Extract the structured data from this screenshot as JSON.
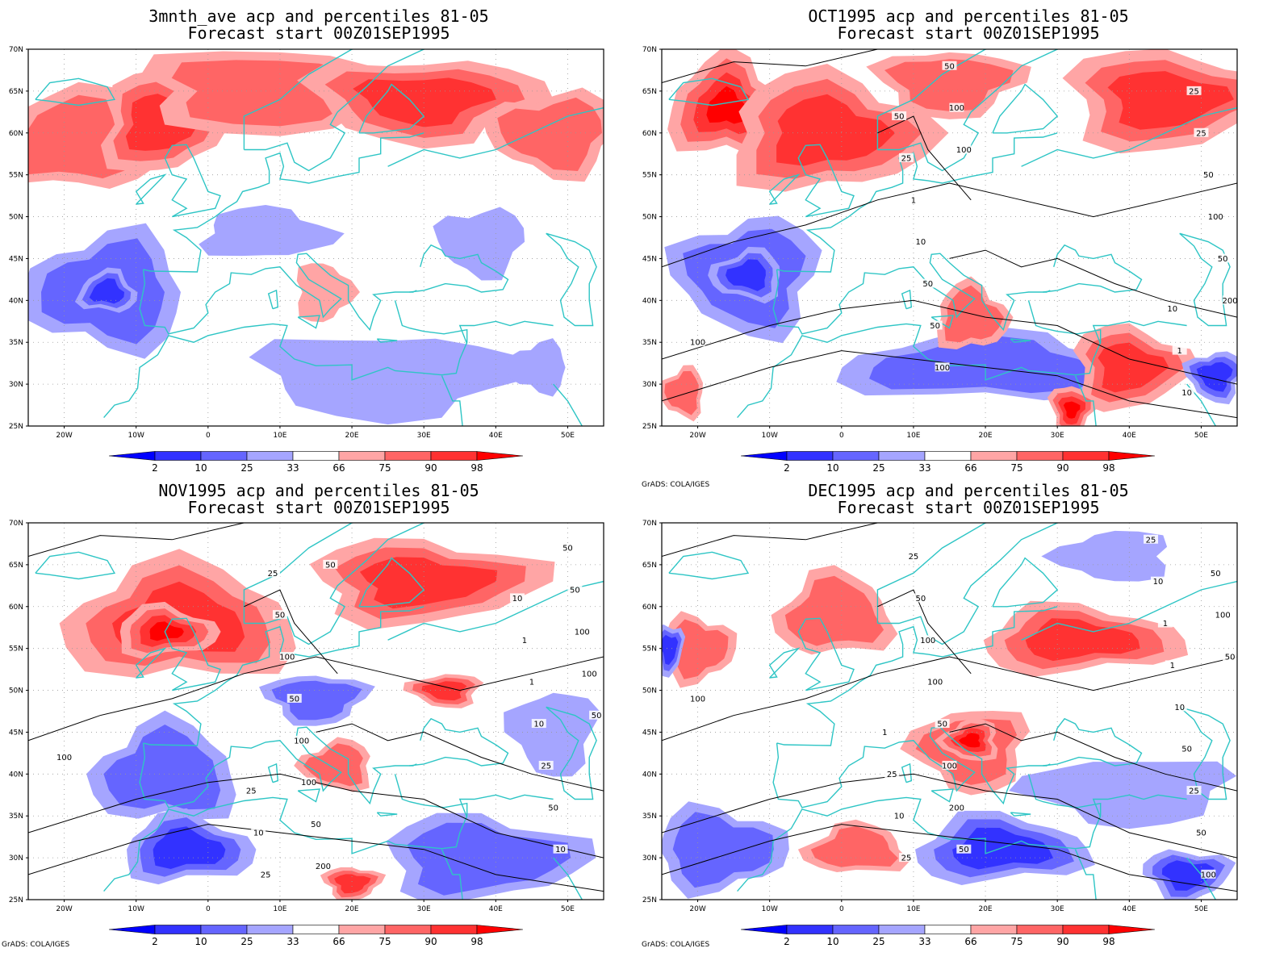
{
  "panels": [
    {
      "id": "p1",
      "title_line1": "3mnth_ave acp and percentiles 81-05",
      "title_line2": "Forecast start 00Z01SEP1995",
      "credit": "",
      "contour_labels": [],
      "blobs": [
        {
          "lon": -18,
          "lat": 59,
          "rx": 11,
          "ry": 6,
          "level": 75
        },
        {
          "lon": -7,
          "lat": 61,
          "rx": 8,
          "ry": 6,
          "level": 90
        },
        {
          "lon": 10,
          "lat": 65,
          "rx": 20,
          "ry": 5,
          "level": 75
        },
        {
          "lon": 30,
          "lat": 64,
          "rx": 16,
          "ry": 5,
          "level": 90
        },
        {
          "lon": 48,
          "lat": 60,
          "rx": 9,
          "ry": 5,
          "level": 75
        },
        {
          "lon": -14,
          "lat": 41,
          "rx": 11,
          "ry": 7,
          "level": 25
        },
        {
          "lon": -14,
          "lat": 41,
          "rx": 4,
          "ry": 2.5,
          "level": 10
        },
        {
          "lon": 8,
          "lat": 48,
          "rx": 9,
          "ry": 3,
          "level": 33
        },
        {
          "lon": 16,
          "lat": 41,
          "rx": 4,
          "ry": 3.5,
          "level": 66
        },
        {
          "lon": 25,
          "lat": 31,
          "rx": 18,
          "ry": 5,
          "level": 33
        },
        {
          "lon": 38,
          "lat": 47,
          "rx": 6,
          "ry": 4,
          "level": 33
        },
        {
          "lon": 46,
          "lat": 32,
          "rx": 4,
          "ry": 3,
          "level": 33
        }
      ]
    },
    {
      "id": "p2",
      "title_line1": "OCT1995 acp and percentiles 81-05",
      "title_line2": "Forecast start 00Z01SEP1995",
      "credit": "GrADS: COLA/IGES",
      "contour_labels": [
        "100",
        "100",
        "200",
        "100",
        "50",
        "50",
        "100",
        "100",
        "50",
        "50",
        "25",
        "50",
        "25",
        "10",
        "10",
        "1",
        "1",
        "25",
        "10",
        "50"
      ],
      "blobs": [
        {
          "lon": -16,
          "lat": 63,
          "rx": 8,
          "ry": 6,
          "level": 98
        },
        {
          "lon": -2,
          "lat": 60,
          "rx": 14,
          "ry": 7,
          "level": 90
        },
        {
          "lon": 45,
          "lat": 64,
          "rx": 14,
          "ry": 6,
          "level": 90
        },
        {
          "lon": 15,
          "lat": 66,
          "rx": 10,
          "ry": 4,
          "level": 75
        },
        {
          "lon": -13,
          "lat": 43,
          "rx": 10,
          "ry": 7,
          "level": 25
        },
        {
          "lon": -13,
          "lat": 43,
          "rx": 5,
          "ry": 3,
          "level": 10
        },
        {
          "lon": 20,
          "lat": 32,
          "rx": 20,
          "ry": 4,
          "level": 25
        },
        {
          "lon": 18,
          "lat": 38,
          "rx": 5,
          "ry": 4,
          "level": 75
        },
        {
          "lon": 40,
          "lat": 32,
          "rx": 8,
          "ry": 5,
          "level": 90
        },
        {
          "lon": 32,
          "lat": 27,
          "rx": 3,
          "ry": 3,
          "level": 98
        },
        {
          "lon": 52,
          "lat": 31,
          "rx": 4,
          "ry": 3,
          "level": 10
        },
        {
          "lon": -22,
          "lat": 29,
          "rx": 3,
          "ry": 3,
          "level": 75
        }
      ]
    },
    {
      "id": "p3",
      "title_line1": "NOV1995 acp and percentiles 81-05",
      "title_line2": "Forecast start 00Z01SEP1995",
      "credit": "GrADS: COLA/IGES",
      "contour_labels": [
        "100",
        "50",
        "50",
        "200",
        "100",
        "50",
        "100",
        "100",
        "50",
        "100",
        "50",
        "50",
        "10",
        "100",
        "50",
        "50",
        "25",
        "25",
        "10",
        "25",
        "1",
        "10",
        "1",
        "25",
        "10"
      ],
      "blobs": [
        {
          "lon": -4,
          "lat": 58,
          "rx": 16,
          "ry": 7,
          "level": 90
        },
        {
          "lon": -6,
          "lat": 57,
          "rx": 7,
          "ry": 3,
          "level": 98
        },
        {
          "lon": 30,
          "lat": 63,
          "rx": 16,
          "ry": 5,
          "level": 90
        },
        {
          "lon": 15,
          "lat": 49,
          "rx": 7,
          "ry": 3,
          "level": 25
        },
        {
          "lon": 33,
          "lat": 50,
          "rx": 5,
          "ry": 2,
          "level": 90
        },
        {
          "lon": 18,
          "lat": 41,
          "rx": 5,
          "ry": 3,
          "level": 75
        },
        {
          "lon": -6,
          "lat": 40,
          "rx": 10,
          "ry": 6,
          "level": 25
        },
        {
          "lon": -3,
          "lat": 31,
          "rx": 9,
          "ry": 4,
          "level": 10
        },
        {
          "lon": 38,
          "lat": 30,
          "rx": 14,
          "ry": 5,
          "level": 25
        },
        {
          "lon": 20,
          "lat": 27,
          "rx": 4,
          "ry": 2,
          "level": 90
        },
        {
          "lon": 48,
          "lat": 45,
          "rx": 6,
          "ry": 5,
          "level": 33
        }
      ]
    },
    {
      "id": "p4",
      "title_line1": "DEC1995 acp and percentiles 81-05",
      "title_line2": "Forecast start 00Z01SEP1995",
      "credit": "GrADS: COLA/IGES",
      "contour_labels": [
        "100",
        "50",
        "50",
        "200",
        "100",
        "100",
        "50",
        "50",
        "100",
        "100",
        "50",
        "100",
        "25",
        "50",
        "50",
        "25",
        "10",
        "25",
        "1",
        "10",
        "1",
        "25",
        "10",
        "1",
        "25"
      ],
      "blobs": [
        {
          "lon": -1,
          "lat": 59,
          "rx": 8,
          "ry": 5,
          "level": 75
        },
        {
          "lon": 33,
          "lat": 56,
          "rx": 14,
          "ry": 4,
          "level": 90
        },
        {
          "lon": -20,
          "lat": 55,
          "rx": 5,
          "ry": 4,
          "level": 75
        },
        {
          "lon": -24,
          "lat": 55,
          "rx": 2,
          "ry": 3,
          "level": 10
        },
        {
          "lon": 18,
          "lat": 43,
          "rx": 8,
          "ry": 5,
          "level": 75
        },
        {
          "lon": 18,
          "lat": 44,
          "rx": 4,
          "ry": 2.5,
          "level": 98
        },
        {
          "lon": 2,
          "lat": 31,
          "rx": 7,
          "ry": 3,
          "level": 75
        },
        {
          "lon": 22,
          "lat": 31,
          "rx": 12,
          "ry": 4,
          "level": 10
        },
        {
          "lon": -17,
          "lat": 31,
          "rx": 9,
          "ry": 5,
          "level": 25
        },
        {
          "lon": 48,
          "lat": 28,
          "rx": 6,
          "ry": 3,
          "level": 10
        },
        {
          "lon": 40,
          "lat": 38,
          "rx": 14,
          "ry": 4,
          "level": 33
        },
        {
          "lon": 38,
          "lat": 66,
          "rx": 8,
          "ry": 3,
          "level": 33
        }
      ]
    }
  ],
  "map_axes": {
    "lat_ticks": [
      "70N",
      "65N",
      "60N",
      "55N",
      "50N",
      "45N",
      "40N",
      "35N",
      "30N",
      "25N"
    ],
    "lon_ticks": [
      "20W",
      "10W",
      "0",
      "10E",
      "20E",
      "30E",
      "40E",
      "50E"
    ],
    "lat_range": [
      25,
      70
    ],
    "lon_range": [
      -25,
      55
    ]
  },
  "colorbar": {
    "labels": [
      "2",
      "10",
      "25",
      "33",
      "66",
      "75",
      "90",
      "98"
    ],
    "colors": {
      "lt2": "#0000ff",
      "c2_10": "#3232ff",
      "c10_25": "#6565ff",
      "c25_33": "#a5a5ff",
      "c33_66": "#ffffff",
      "c66_75": "#ffa5a5",
      "c75_90": "#ff6565",
      "c90_98": "#ff3232",
      "gt98": "#ff0000"
    }
  },
  "colors": {
    "coast": "#2ec5c5",
    "contour": "#000000",
    "grid": "#999999"
  }
}
